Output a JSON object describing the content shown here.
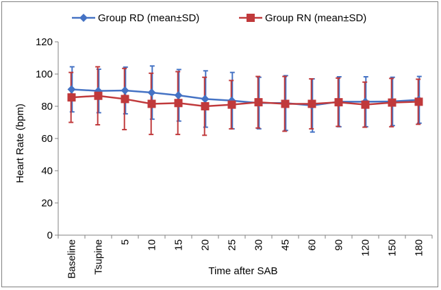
{
  "chart_data": {
    "type": "line",
    "title": "",
    "xlabel": "Time after SAB",
    "ylabel": "Heart Rate (bpm)",
    "ylim": [
      0,
      120
    ],
    "yticks": [
      0,
      20,
      40,
      60,
      80,
      100,
      120
    ],
    "grid": false,
    "legend_position": "top",
    "categories": [
      "Baseline",
      "Tsupine",
      "5",
      "10",
      "15",
      "20",
      "25",
      "30",
      "45",
      "60",
      "90",
      "120",
      "150",
      "180"
    ],
    "series": [
      {
        "name": "Group RD (mean±SD)",
        "color": "#4472c4",
        "marker": "diamond",
        "values": [
          90.5,
          89.5,
          89.8,
          88.5,
          86.8,
          84.5,
          83.5,
          82,
          82,
          80.5,
          82.8,
          82.8,
          83,
          84
        ],
        "sd": [
          14,
          13.5,
          14.5,
          16.5,
          16,
          17.5,
          17.5,
          16,
          17,
          16.5,
          15.5,
          15.5,
          15,
          14.5
        ]
      },
      {
        "name": "Group RN (mean±SD)",
        "color": "#c0393b",
        "marker": "square",
        "values": [
          85.5,
          86.5,
          84.5,
          81.5,
          82,
          80,
          81,
          82.5,
          81.5,
          81.5,
          82.5,
          81,
          82.3,
          82.8
        ],
        "sd": [
          15.5,
          18,
          19,
          19,
          19.5,
          18,
          15,
          16,
          17,
          15.5,
          15,
          14,
          15,
          14
        ]
      }
    ]
  }
}
